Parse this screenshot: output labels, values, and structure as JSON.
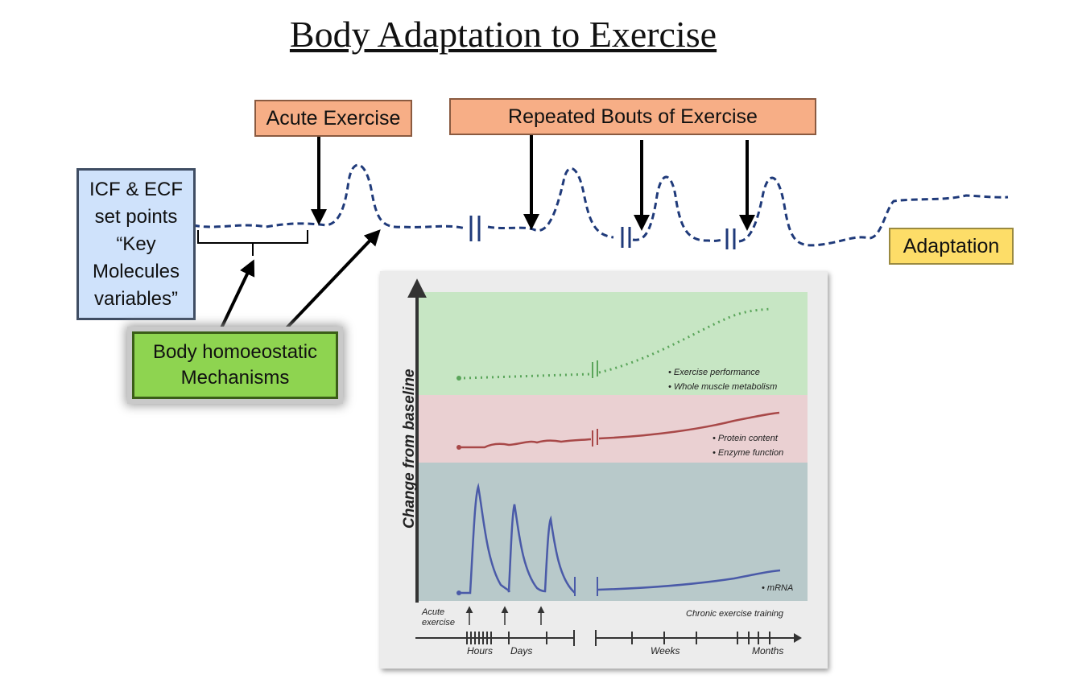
{
  "title": "Body Adaptation to Exercise",
  "boxes": {
    "acute": "Acute Exercise",
    "repeated": "Repeated Bouts  of Exercise",
    "icf": [
      "ICF & ECF",
      "set points",
      "“Key",
      "Molecules",
      "variables”"
    ],
    "homeostatic": [
      "Body homoeostatic",
      "Mechanisms"
    ],
    "adaptation": "Adaptation"
  },
  "inset": {
    "ylabel": "Change from baseline",
    "bands": [
      {
        "name": "performance",
        "color": "#c7e6c4",
        "labels": [
          "• Exercise performance",
          "• Whole muscle metabolism"
        ]
      },
      {
        "name": "protein",
        "color": "#ead0d2",
        "labels": [
          "• Protein content",
          "• Enzyme function"
        ]
      },
      {
        "name": "mrna",
        "color": "#b8c9ca",
        "labels": [
          "• mRNA"
        ]
      }
    ],
    "acute_label": [
      "Acute",
      "exercise"
    ],
    "chronic_label": "Chronic exercise training",
    "time_labels": [
      "Hours",
      "Days",
      "Weeks",
      "Months"
    ]
  },
  "colors": {
    "dashed_line": "#1f3a7a",
    "performance_line": "#5aa55a",
    "protein_line": "#a84848",
    "mrna_line": "#4a5aa8"
  }
}
